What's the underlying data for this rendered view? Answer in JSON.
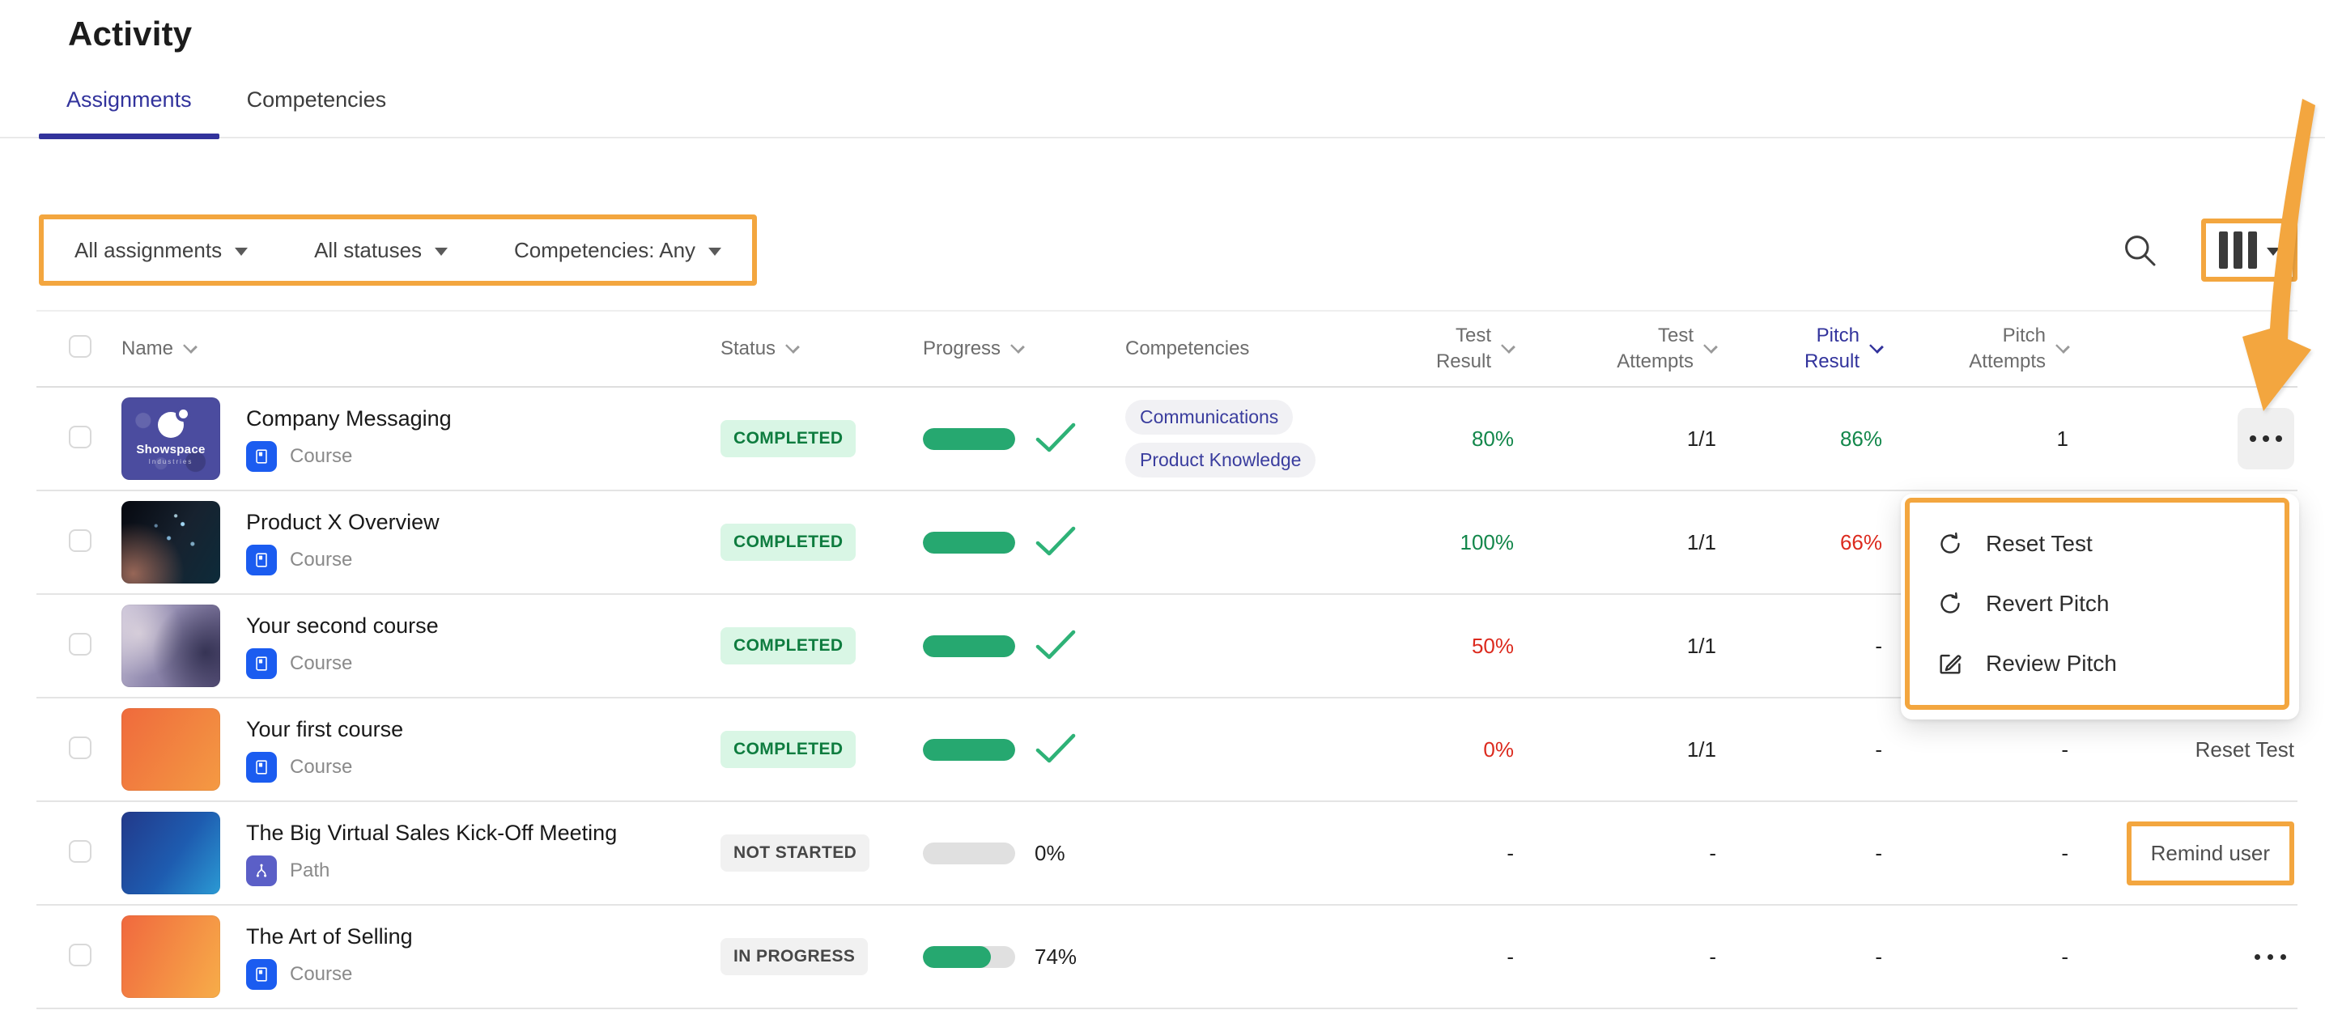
{
  "page": {
    "title": "Activity"
  },
  "tabs": [
    {
      "label": "Assignments",
      "active": true
    },
    {
      "label": "Competencies",
      "active": false
    }
  ],
  "filters": {
    "assignment": "All assignments",
    "status": "All statuses",
    "competency": "Competencies: Any"
  },
  "table": {
    "headers": {
      "name": "Name",
      "status": "Status",
      "progress": "Progress",
      "competencies": "Competencies",
      "test_result": "Test\nResult",
      "test_attempts": "Test\nAttempts",
      "pitch_result": "Pitch\nResult",
      "pitch_attempts": "Pitch\nAttempts"
    },
    "sorted_column": "pitch_result",
    "rows": [
      {
        "name": "Company Messaging",
        "type": "Course",
        "type_kind": "course",
        "thumb": "showspace",
        "thumb_title": "Showspace",
        "thumb_sub": "Industries",
        "status": "COMPLETED",
        "status_kind": "completed",
        "progress_pct": 100,
        "progress_display": "check",
        "competencies": [
          "Communications",
          "Product Knowledge"
        ],
        "test_result": "80%",
        "test_result_color": "green",
        "test_attempts": "1/1",
        "pitch_result": "86%",
        "pitch_result_color": "green",
        "pitch_attempts": "1",
        "action": "menu-ellipsis",
        "action_label": ""
      },
      {
        "name": "Product X Overview",
        "type": "Course",
        "type_kind": "course",
        "thumb": "tech",
        "status": "COMPLETED",
        "status_kind": "completed",
        "progress_pct": 100,
        "progress_display": "check",
        "competencies": [],
        "test_result": "100%",
        "test_result_color": "green",
        "test_attempts": "1/1",
        "pitch_result": "66%",
        "pitch_result_color": "red",
        "pitch_attempts": "",
        "action": "none",
        "action_label": ""
      },
      {
        "name": "Your second course",
        "type": "Course",
        "type_kind": "course",
        "thumb": "office",
        "status": "COMPLETED",
        "status_kind": "completed",
        "progress_pct": 100,
        "progress_display": "check",
        "competencies": [],
        "test_result": "50%",
        "test_result_color": "red",
        "test_attempts": "1/1",
        "pitch_result": "-",
        "pitch_result_color": "plain",
        "pitch_attempts": "",
        "action": "none",
        "action_label": ""
      },
      {
        "name": "Your first course",
        "type": "Course",
        "type_kind": "course",
        "thumb": "orange",
        "status": "COMPLETED",
        "status_kind": "completed",
        "progress_pct": 100,
        "progress_display": "check",
        "competencies": [],
        "test_result": "0%",
        "test_result_color": "red",
        "test_attempts": "1/1",
        "pitch_result": "-",
        "pitch_result_color": "plain",
        "pitch_attempts": "-",
        "action": "link",
        "action_label": "Reset Test"
      },
      {
        "name": "The Big Virtual Sales Kick-Off Meeting",
        "type": "Path",
        "type_kind": "path",
        "thumb": "blue",
        "status": "NOT STARTED",
        "status_kind": "gray",
        "progress_pct": 0,
        "progress_display": "percent",
        "progress_label": "0%",
        "competencies": [],
        "test_result": "-",
        "test_result_color": "plain",
        "test_attempts": "-",
        "pitch_result": "-",
        "pitch_result_color": "plain",
        "pitch_attempts": "-",
        "action": "link-highlight",
        "action_label": "Remind user"
      },
      {
        "name": "The Art of Selling",
        "type": "Course",
        "type_kind": "course",
        "thumb": "orange2",
        "status": "IN PROGRESS",
        "status_kind": "gray",
        "progress_pct": 74,
        "progress_display": "percent",
        "progress_label": "74%",
        "competencies": [],
        "test_result": "-",
        "test_result_color": "plain",
        "test_attempts": "-",
        "pitch_result": "-",
        "pitch_result_color": "plain",
        "pitch_attempts": "-",
        "action": "ellipsis",
        "action_label": ""
      }
    ]
  },
  "context_menu": {
    "items": [
      {
        "icon": "refresh-icon",
        "label": "Reset Test"
      },
      {
        "icon": "refresh-icon",
        "label": "Revert Pitch"
      },
      {
        "icon": "edit-icon",
        "label": "Review Pitch"
      }
    ]
  },
  "colors": {
    "accent_orange": "#F3A63F",
    "brand_indigo": "#32339C",
    "success_green": "#26A870",
    "success_text": "#13874B",
    "badge_green_bg": "#D9F6E5",
    "badge_green_text": "#0E7C3F",
    "error_red": "#DC2A1E"
  }
}
